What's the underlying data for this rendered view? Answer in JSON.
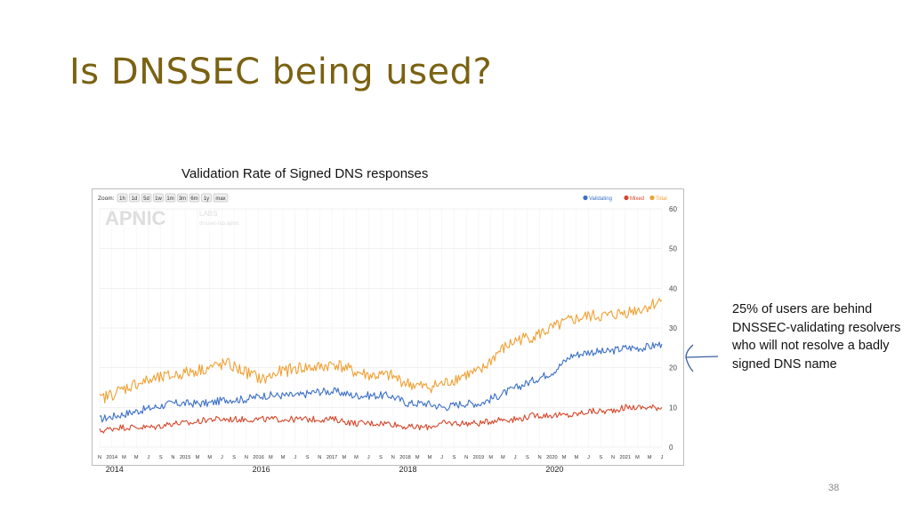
{
  "slide": {
    "title": "Is DNSSEC being used?",
    "caption": "Validation Rate of Signed DNS responses",
    "annotation_lines": [
      "25% of users are behind",
      "DNSSEC-validating resolvers",
      "who will not resolve a badly",
      "signed DNS name"
    ],
    "page_number": "38"
  },
  "chart_data": {
    "type": "line",
    "zoom_label": "Zoom:",
    "zoom_options": [
      "1h",
      "1d",
      "5d",
      "1w",
      "1m",
      "3m",
      "6m",
      "1y",
      "max"
    ],
    "watermark": {
      "logo": "APNIC",
      "sub1": "LABS",
      "sub2": "dnssec-lab.apnic"
    },
    "legend_position": "top-right",
    "grid": true,
    "ylim": [
      0,
      60
    ],
    "yticks": [
      "0",
      "10",
      "20",
      "30",
      "40",
      "50",
      "60"
    ],
    "xticks": [
      "N",
      "2014",
      "M",
      "M",
      "J",
      "S",
      "N",
      "2015",
      "M",
      "M",
      "J",
      "S",
      "N",
      "2016",
      "M",
      "M",
      "J",
      "S",
      "N",
      "2017",
      "M",
      "M",
      "J",
      "S",
      "N",
      "2018",
      "M",
      "M",
      "J",
      "S",
      "N",
      "2019",
      "M",
      "M",
      "J",
      "S",
      "N",
      "2020",
      "M",
      "M",
      "J",
      "S",
      "N",
      "2021",
      "M",
      "M",
      "J"
    ],
    "year_labels": [
      "2014",
      "2016",
      "2018",
      "2020"
    ],
    "x_start": "2013-11",
    "x_end": "2021-08",
    "series": [
      {
        "name": "Validating",
        "color": "#3b6fc6",
        "x": [
          "2013-11",
          "2014-02",
          "2014-05",
          "2014-08",
          "2014-11",
          "2015-02",
          "2015-05",
          "2015-08",
          "2015-11",
          "2016-02",
          "2016-05",
          "2016-08",
          "2016-11",
          "2017-02",
          "2017-05",
          "2017-08",
          "2017-11",
          "2018-02",
          "2018-05",
          "2018-08",
          "2018-11",
          "2019-02",
          "2019-05",
          "2019-08",
          "2019-11",
          "2020-02",
          "2020-05",
          "2020-08",
          "2020-11",
          "2021-02",
          "2021-05",
          "2021-08"
        ],
        "values": [
          7,
          8,
          9,
          10,
          11,
          11,
          11,
          12,
          12,
          13,
          13,
          13,
          14,
          14,
          13,
          13,
          13,
          11,
          11,
          10,
          11,
          11,
          13,
          15,
          17,
          19,
          23,
          24,
          24,
          25,
          25,
          26
        ]
      },
      {
        "name": "Mixed",
        "color": "#d6462a",
        "x": [
          "2013-11",
          "2014-02",
          "2014-05",
          "2014-08",
          "2014-11",
          "2015-02",
          "2015-05",
          "2015-08",
          "2015-11",
          "2016-02",
          "2016-05",
          "2016-08",
          "2016-11",
          "2017-02",
          "2017-05",
          "2017-08",
          "2017-11",
          "2018-02",
          "2018-05",
          "2018-08",
          "2018-11",
          "2019-02",
          "2019-05",
          "2019-08",
          "2019-11",
          "2020-02",
          "2020-05",
          "2020-08",
          "2020-11",
          "2021-02",
          "2021-05",
          "2021-08"
        ],
        "values": [
          4,
          5,
          5,
          5,
          6,
          6,
          7,
          7,
          7,
          7,
          7,
          7,
          7,
          7,
          6,
          6,
          6,
          5,
          5,
          6,
          6,
          6,
          7,
          7,
          8,
          8,
          8,
          9,
          9,
          10,
          10,
          10
        ]
      },
      {
        "name": "Total",
        "color": "#f0a033",
        "x": [
          "2013-11",
          "2014-02",
          "2014-05",
          "2014-08",
          "2014-11",
          "2015-02",
          "2015-05",
          "2015-08",
          "2015-11",
          "2016-02",
          "2016-05",
          "2016-08",
          "2016-11",
          "2017-02",
          "2017-05",
          "2017-08",
          "2017-11",
          "2018-02",
          "2018-05",
          "2018-08",
          "2018-11",
          "2019-02",
          "2019-05",
          "2019-08",
          "2019-11",
          "2020-02",
          "2020-05",
          "2020-08",
          "2020-11",
          "2021-02",
          "2021-05",
          "2021-08"
        ],
        "values": [
          12,
          14,
          16,
          17,
          18,
          19,
          20,
          21,
          19,
          17,
          19,
          20,
          20,
          21,
          19,
          18,
          18,
          16,
          15,
          16,
          18,
          19,
          24,
          27,
          28,
          30,
          32,
          33,
          33,
          34,
          35,
          37
        ]
      }
    ]
  }
}
